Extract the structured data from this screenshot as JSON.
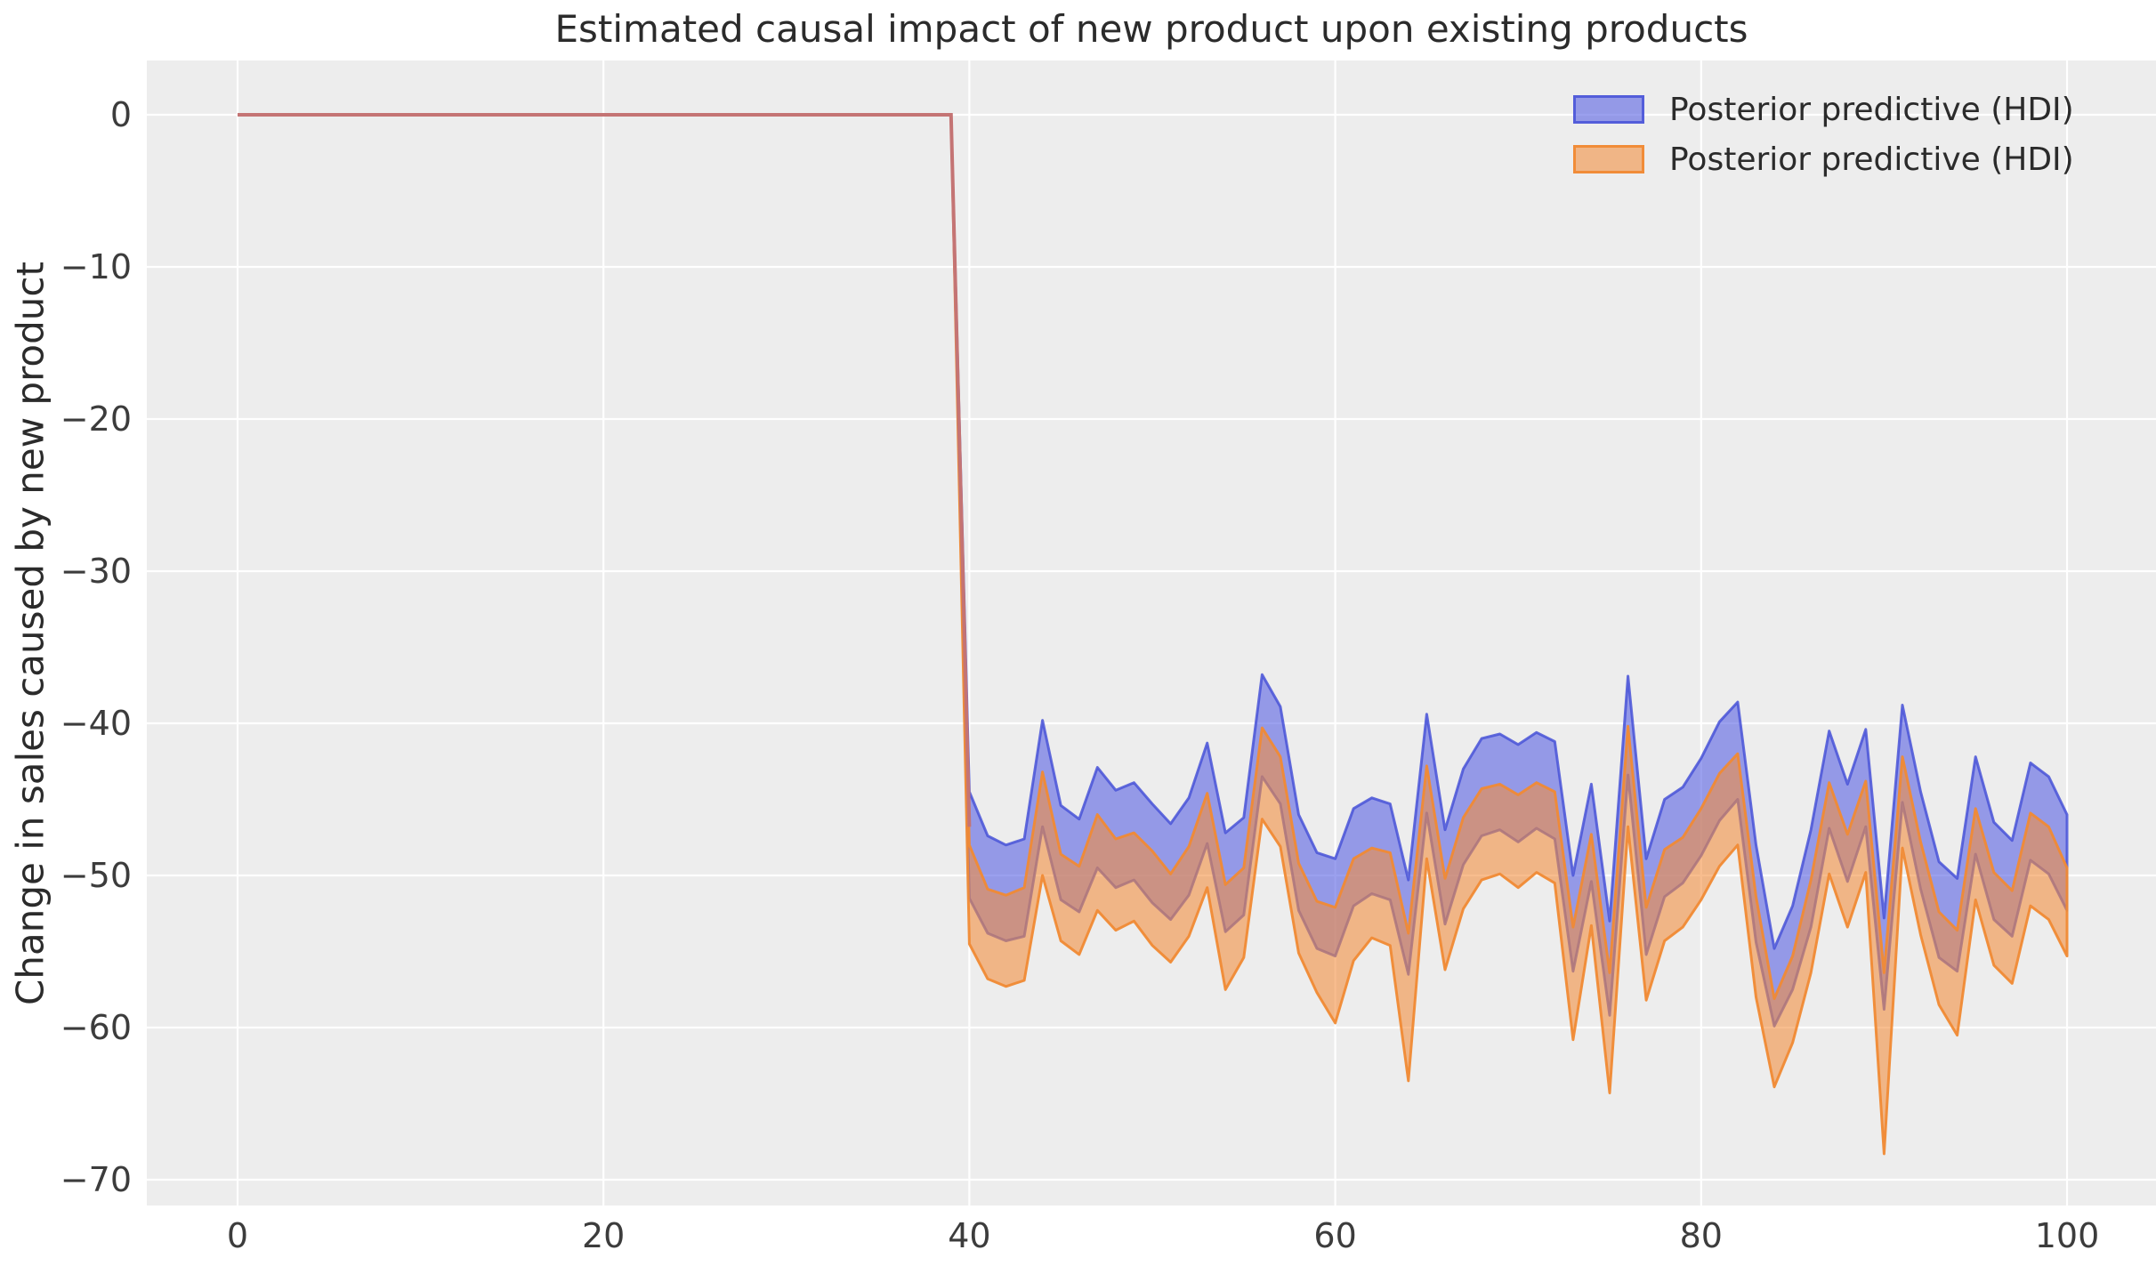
{
  "title": "Estimated causal impact of new product upon existing products",
  "ylabel": "Change in sales caused by new product",
  "legend": {
    "items": [
      {
        "label": "Posterior predictive (HDI)",
        "fill": "rgba(88,97,226,0.60)",
        "border": "rgba(72,82,215,0.85)"
      },
      {
        "label": "Posterior predictive (HDI)",
        "fill": "rgba(243,141,60,0.58)",
        "border": "rgba(240,138,52,0.95)"
      }
    ]
  },
  "axes": {
    "bg_color": "#EDEDED",
    "grid_color": "#FFFFFF",
    "x_ticks": [
      {
        "value": 0,
        "label": "0"
      },
      {
        "value": 20,
        "label": "20"
      },
      {
        "value": 40,
        "label": "40"
      },
      {
        "value": 60,
        "label": "60"
      },
      {
        "value": 80,
        "label": "80"
      },
      {
        "value": 100,
        "label": "100"
      }
    ],
    "y_ticks": [
      {
        "value": 0,
        "label": "0"
      },
      {
        "value": -10,
        "label": "−10"
      },
      {
        "value": -20,
        "label": "−20"
      },
      {
        "value": -30,
        "label": "−30"
      },
      {
        "value": -40,
        "label": "−40"
      },
      {
        "value": -50,
        "label": "−50"
      },
      {
        "value": -60,
        "label": "−60"
      },
      {
        "value": -70,
        "label": "−70"
      }
    ]
  },
  "chart_data": {
    "type": "area",
    "title": "Estimated causal impact of new product upon existing products",
    "xlabel": "",
    "ylabel": "Change in sales caused by new product",
    "xlim": [
      -5,
      105
    ],
    "ylim": [
      -71.7,
      3.6
    ],
    "grid": true,
    "legend_position": "upper right",
    "treatment_start_x": 40,
    "pre_period_line": {
      "name": "pre-intervention zero impact line",
      "color": "#C47474",
      "points": [
        [
          0,
          0
        ],
        [
          39,
          0
        ],
        [
          40,
          -46.8
        ]
      ]
    },
    "x": [
      39,
      40,
      41,
      42,
      43,
      44,
      45,
      46,
      47,
      48,
      49,
      50,
      51,
      52,
      53,
      54,
      55,
      56,
      57,
      58,
      59,
      60,
      61,
      62,
      63,
      64,
      65,
      66,
      67,
      68,
      69,
      70,
      71,
      72,
      73,
      74,
      75,
      76,
      77,
      78,
      79,
      80,
      81,
      82,
      83,
      84,
      85,
      86,
      87,
      88,
      89,
      90,
      91,
      92,
      93,
      94,
      95,
      96,
      97,
      98,
      99,
      100
    ],
    "series": [
      {
        "name": "Posterior predictive (HDI)",
        "band": "blue",
        "fill": "rgba(88,97,226,0.60)",
        "edge": "rgba(72,82,215,0.85)",
        "upper": [
          0,
          -44.5,
          -47.4,
          -48,
          -47.6,
          -39.8,
          -45.4,
          -46.3,
          -42.9,
          -44.4,
          -43.9,
          -45.3,
          -46.6,
          -44.9,
          -41.3,
          -47.2,
          -46.2,
          -36.8,
          -38.9,
          -46,
          -48.5,
          -48.9,
          -45.6,
          -44.9,
          -45.3,
          -50.3,
          -39.4,
          -47,
          -43,
          -41,
          -40.7,
          -41.4,
          -40.6,
          -41.2,
          -50,
          -44,
          -53,
          -36.9,
          -48.9,
          -45,
          -44.2,
          -42.3,
          -39.9,
          -38.6,
          -48,
          -54.8,
          -52,
          -47,
          -40.5,
          -44,
          -40.4,
          -52.8,
          -38.8,
          -44.5,
          -49.1,
          -50.2,
          -42.2,
          -46.5,
          -47.7,
          -42.6,
          -43.5,
          -46
        ],
        "lower": [
          0,
          -51.5,
          -53.8,
          -54.3,
          -54,
          -46.8,
          -51.6,
          -52.4,
          -49.5,
          -50.8,
          -50.3,
          -51.8,
          -52.9,
          -51.3,
          -47.9,
          -53.7,
          -52.6,
          -43.5,
          -45.3,
          -52.3,
          -54.8,
          -55.3,
          -52,
          -51.2,
          -51.6,
          -56.5,
          -45.9,
          -53.2,
          -49.3,
          -47.4,
          -47,
          -47.8,
          -46.9,
          -47.6,
          -56.3,
          -50.4,
          -59.2,
          -43.4,
          -55.2,
          -51.4,
          -50.5,
          -48.7,
          -46.4,
          -45,
          -54.4,
          -59.9,
          -57.5,
          -53.4,
          -46.9,
          -50.4,
          -46.8,
          -58.8,
          -45.2,
          -50.9,
          -55.4,
          -56.3,
          -48.6,
          -52.9,
          -54,
          -49,
          -49.9,
          -52.3
        ]
      },
      {
        "name": "Posterior predictive (HDI)",
        "band": "orange",
        "fill": "rgba(243,141,60,0.58)",
        "edge": "rgba(240,138,52,0.95)",
        "upper": [
          0,
          -48,
          -50.9,
          -51.3,
          -50.8,
          -43.2,
          -48.6,
          -49.4,
          -46,
          -47.6,
          -47.2,
          -48.4,
          -49.9,
          -48.1,
          -44.6,
          -50.6,
          -49.5,
          -40.3,
          -42.2,
          -49.2,
          -51.7,
          -52.1,
          -48.9,
          -48.2,
          -48.5,
          -53.8,
          -42.8,
          -50.2,
          -46.2,
          -44.3,
          -44,
          -44.7,
          -43.9,
          -44.5,
          -53.4,
          -47.3,
          -56.4,
          -40.2,
          -52.1,
          -48.3,
          -47.5,
          -45.6,
          -43.3,
          -42,
          -51.4,
          -58.1,
          -55.3,
          -50.3,
          -43.9,
          -47.3,
          -43.8,
          -56.4,
          -42.2,
          -47.8,
          -52.4,
          -53.6,
          -45.6,
          -49.8,
          -51,
          -45.9,
          -46.8,
          -49.5
        ],
        "lower": [
          0,
          -54.5,
          -56.8,
          -57.3,
          -56.9,
          -50,
          -54.3,
          -55.2,
          -52.3,
          -53.6,
          -53,
          -54.6,
          -55.7,
          -54,
          -50.8,
          -57.5,
          -55.4,
          -46.3,
          -48.1,
          -55.1,
          -57.7,
          -59.7,
          -55.6,
          -54.1,
          -54.6,
          -63.5,
          -48.9,
          -56.2,
          -52.2,
          -50.3,
          -49.9,
          -50.8,
          -49.8,
          -50.5,
          -60.8,
          -53.3,
          -64.3,
          -46.8,
          -58.2,
          -54.3,
          -53.4,
          -51.6,
          -49.4,
          -48,
          -58,
          -63.9,
          -61,
          -56.4,
          -49.9,
          -53.4,
          -49.8,
          -68.3,
          -48.2,
          -53.9,
          -58.5,
          -60.5,
          -51.6,
          -55.9,
          -57.1,
          -52,
          -52.9,
          -55.3
        ]
      }
    ]
  }
}
